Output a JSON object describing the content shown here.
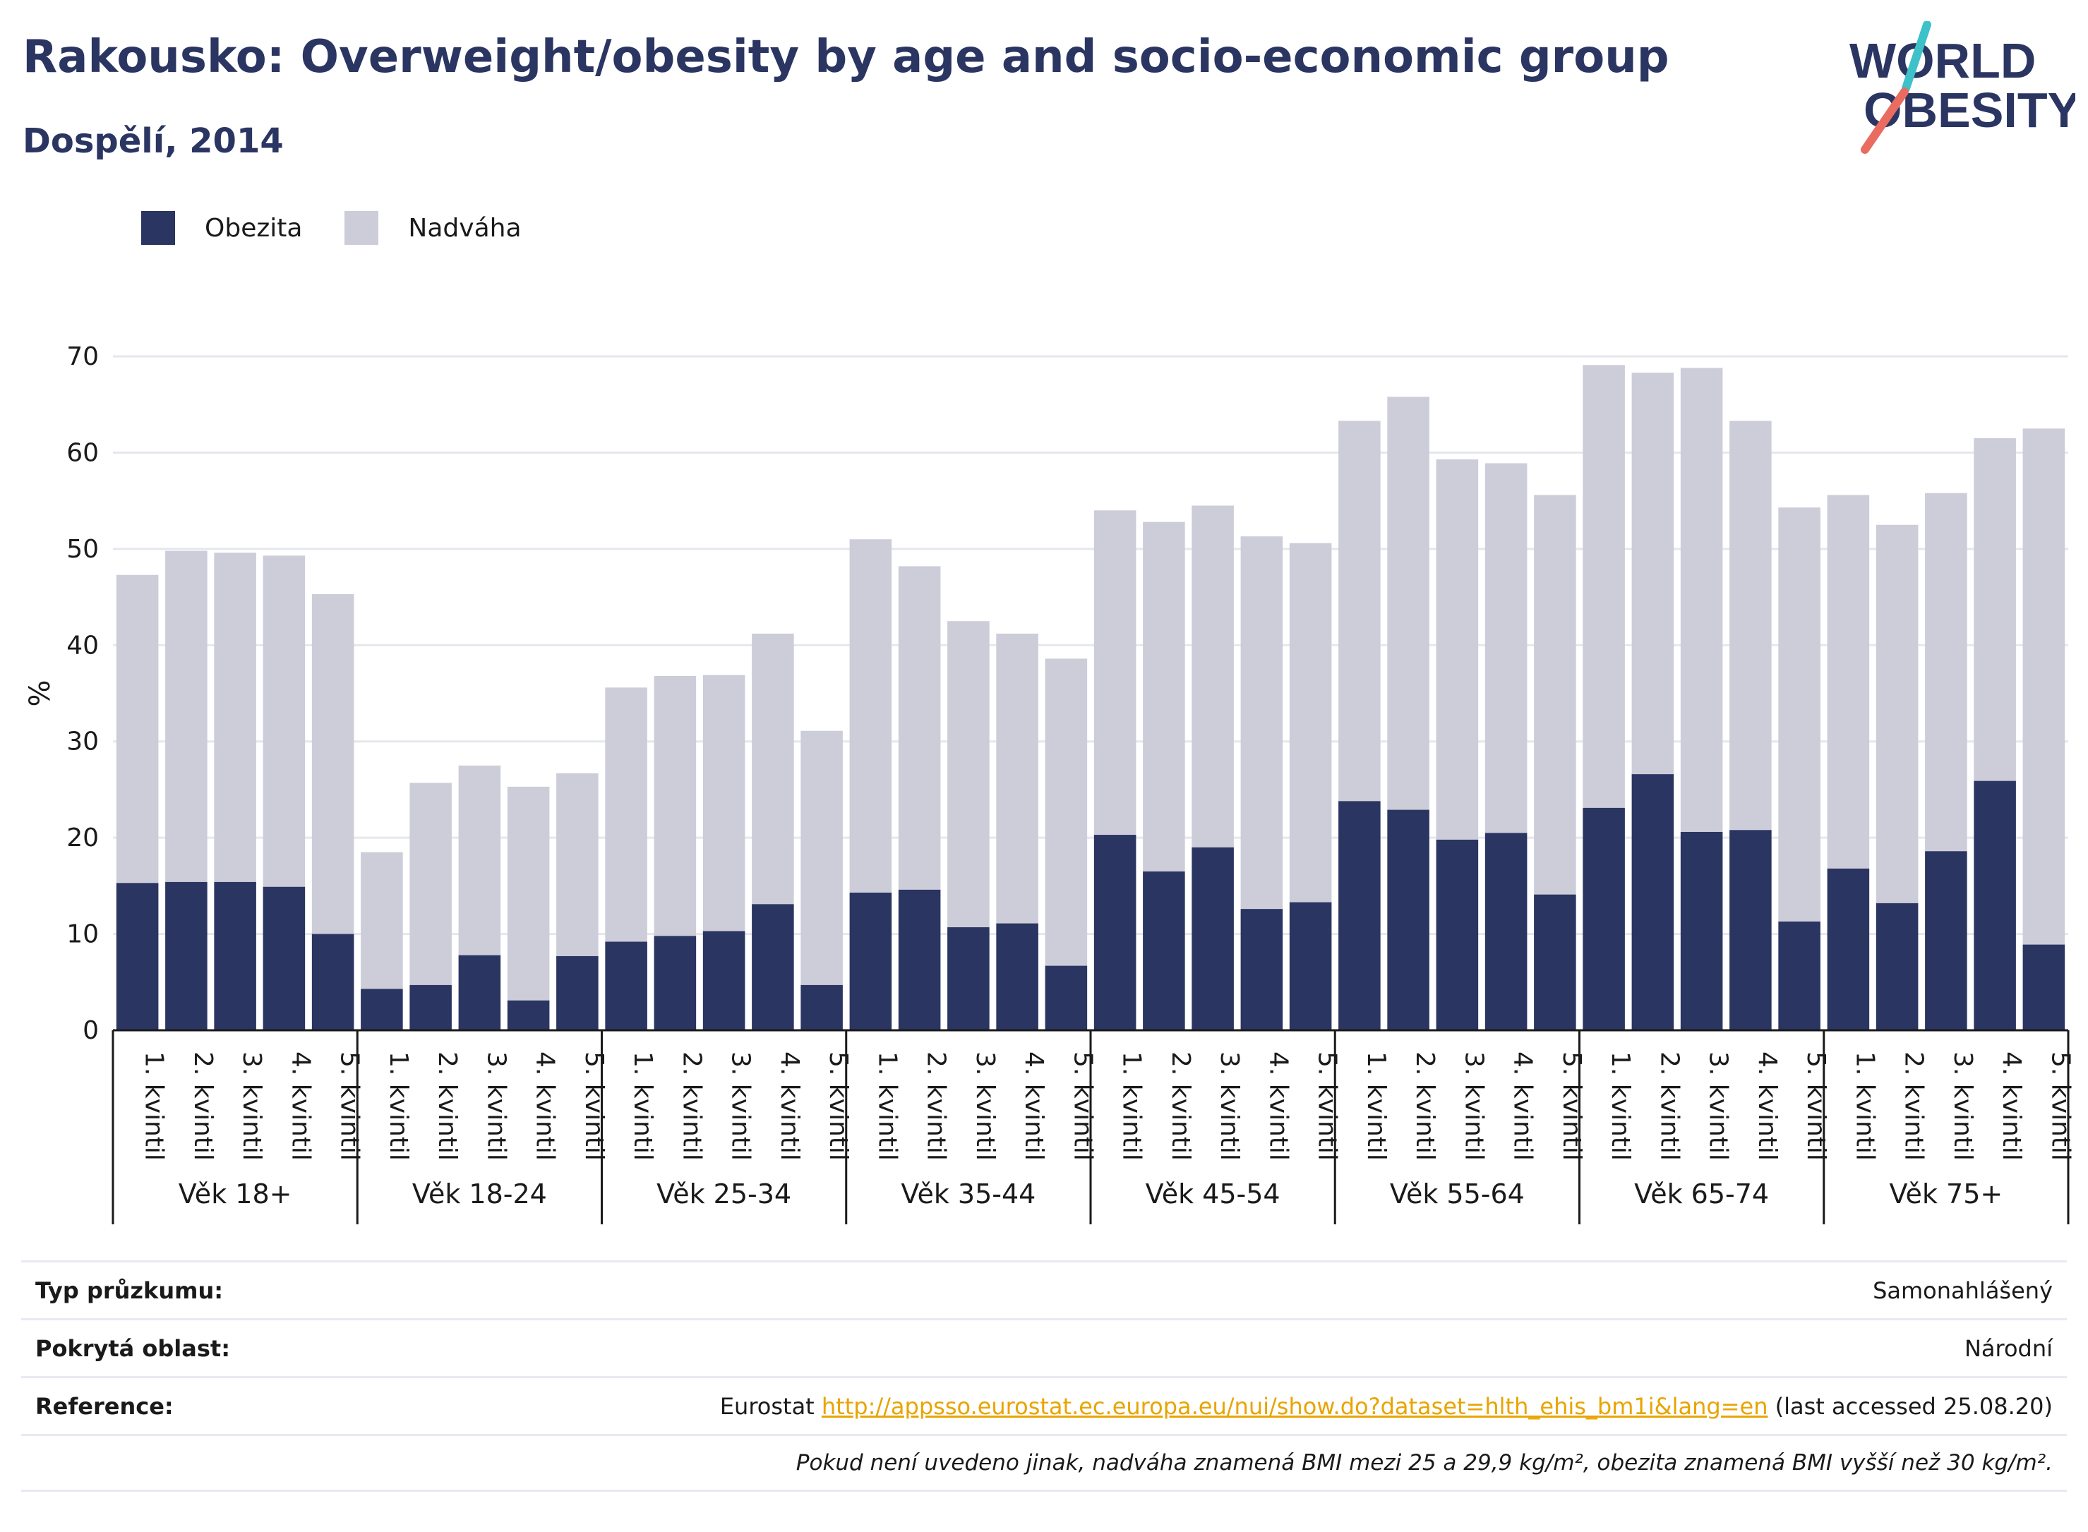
{
  "title": "Rakousko: Overweight/obesity by age and socio-economic group",
  "subtitle": "Dospělí, 2014",
  "logo": {
    "line1": "WORLD",
    "line2": "OBESITY"
  },
  "colors": {
    "obesity": "#2b3562",
    "overweight": "#cccdd9",
    "title": "#2b3562",
    "link": "#e8a400",
    "logo_teal": "#3ec1c9",
    "logo_red": "#ea6b5f"
  },
  "legend": [
    {
      "label": "Obezita",
      "color": "#2b3562"
    },
    {
      "label": "Nadváha",
      "color": "#cccdd9"
    }
  ],
  "chart_data": {
    "type": "bar",
    "stacked": true,
    "ylabel": "%",
    "ylim": [
      0,
      70
    ],
    "yticks": [
      0,
      10,
      20,
      30,
      40,
      50,
      60,
      70
    ],
    "grid": true,
    "legend_position": "top-left",
    "groups": [
      {
        "label": "Věk 18+",
        "categories": [
          "1. kvintil",
          "2. kvintil",
          "3. kvintil",
          "4. kvintil",
          "5. kvintil"
        ],
        "obezita": [
          15.3,
          15.4,
          15.4,
          14.9,
          10.0
        ],
        "total": [
          47.3,
          49.8,
          49.6,
          49.3,
          45.3
        ]
      },
      {
        "label": "Věk 18-24",
        "categories": [
          "1. kvintil",
          "2. kvintil",
          "3. kvintil",
          "4. kvintil",
          "5. kvintil"
        ],
        "obezita": [
          4.3,
          4.7,
          7.8,
          3.1,
          7.7
        ],
        "total": [
          18.5,
          25.7,
          27.5,
          25.3,
          26.7
        ]
      },
      {
        "label": "Věk 25-34",
        "categories": [
          "1. kvintil",
          "2. kvintil",
          "3. kvintil",
          "4. kvintil",
          "5. kvintil"
        ],
        "obezita": [
          9.2,
          9.8,
          10.3,
          13.1,
          4.7
        ],
        "total": [
          35.6,
          36.8,
          36.9,
          41.2,
          31.1
        ]
      },
      {
        "label": "Věk 35-44",
        "categories": [
          "1. kvintil",
          "2. kvintil",
          "3. kvintil",
          "4. kvintil",
          "5. kvintil"
        ],
        "obezita": [
          14.3,
          14.6,
          10.7,
          11.1,
          6.7
        ],
        "total": [
          51.0,
          48.2,
          42.5,
          41.2,
          38.6
        ]
      },
      {
        "label": "Věk 45-54",
        "categories": [
          "1. kvintil",
          "2. kvintil",
          "3. kvintil",
          "4. kvintil",
          "5. kvintil"
        ],
        "obezita": [
          20.3,
          16.5,
          19.0,
          12.6,
          13.3
        ],
        "total": [
          54.0,
          52.8,
          54.5,
          51.3,
          50.6
        ]
      },
      {
        "label": "Věk 55-64",
        "categories": [
          "1. kvintil",
          "2. kvintil",
          "3. kvintil",
          "4. kvintil",
          "5. kvintil"
        ],
        "obezita": [
          23.8,
          22.9,
          19.8,
          20.5,
          14.1
        ],
        "total": [
          63.3,
          65.8,
          59.3,
          58.9,
          55.6
        ]
      },
      {
        "label": "Věk 65-74",
        "categories": [
          "1. kvintil",
          "2. kvintil",
          "3. kvintil",
          "4. kvintil",
          "5. kvintil"
        ],
        "obezita": [
          23.1,
          26.6,
          20.6,
          20.8,
          11.3
        ],
        "total": [
          69.1,
          68.3,
          68.8,
          63.3,
          54.3
        ]
      },
      {
        "label": "Věk 75+",
        "categories": [
          "1. kvintil",
          "2. kvintil",
          "3. kvintil",
          "4. kvintil",
          "5. kvintil"
        ],
        "obezita": [
          16.8,
          13.2,
          18.6,
          25.9,
          8.9
        ],
        "total": [
          55.6,
          52.5,
          55.8,
          61.5,
          62.5
        ]
      }
    ]
  },
  "info": {
    "survey_label": "Typ průzkumu:",
    "survey_value": "Samonahlášený",
    "coverage_label": "Pokrytá oblast:",
    "coverage_value": "Národní",
    "reference_label": "Reference:",
    "reference_prefix": "Eurostat ",
    "reference_link": "http://appsso.eurostat.ec.europa.eu/nui/show.do?dataset=hlth_ehis_bm1i&lang=en",
    "reference_suffix": " (last accessed 25.08.20)",
    "note": "Pokud není uvedeno jinak, nadváha znamená BMI mezi 25 a 29,9 kg/m², obezita znamená BMI vyšší než 30 kg/m²."
  }
}
